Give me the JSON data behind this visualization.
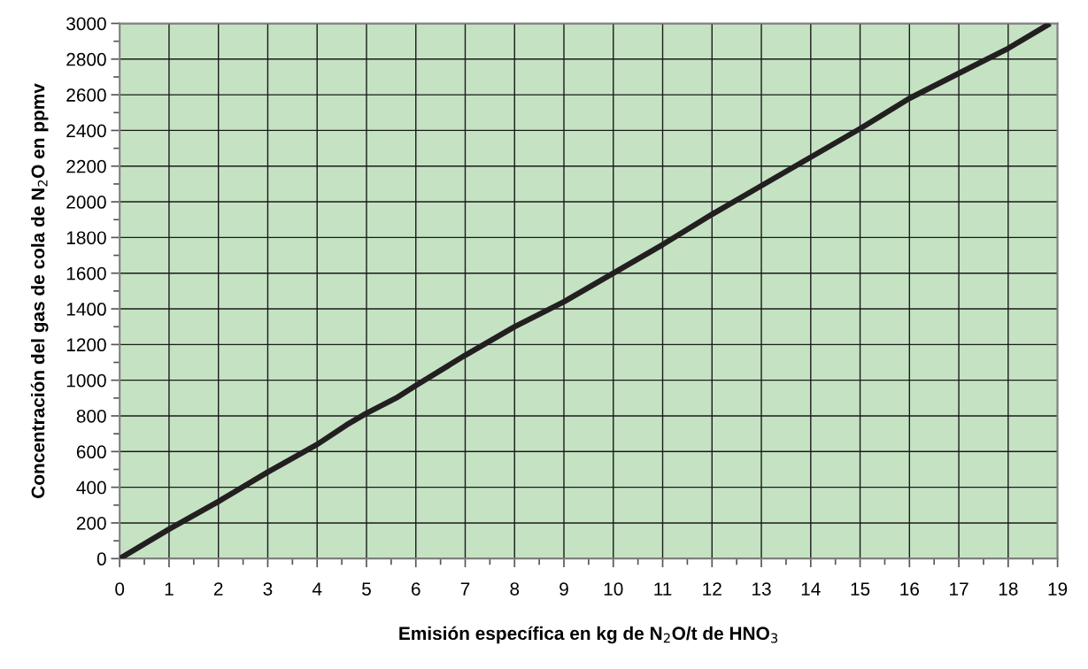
{
  "chart_data": {
    "type": "line",
    "xlabel": "Emisión específica en kg de N$_{2}$O/t de HNO$_{3}$",
    "ylabel": "Concentración del gas de cola de N$_{2}$O en ppmv",
    "x": [
      0,
      1,
      2,
      3,
      4,
      4.6,
      5,
      5.6,
      6,
      7,
      8,
      9,
      10,
      11,
      12,
      13,
      14,
      15,
      16,
      17,
      18,
      18.85
    ],
    "series": [
      {
        "color": "#231f20",
        "values": [
          0,
          165,
          320,
          485,
          640,
          750,
          815,
          900,
          970,
          1140,
          1300,
          1440,
          1600,
          1760,
          1930,
          2090,
          2250,
          2410,
          2580,
          2720,
          2860,
          3000
        ]
      }
    ],
    "xlim": [
      0,
      19
    ],
    "ylim": [
      0,
      3000
    ],
    "xticks": [
      0,
      1,
      2,
      3,
      4,
      5,
      6,
      7,
      8,
      9,
      10,
      11,
      12,
      13,
      14,
      15,
      16,
      17,
      18,
      19
    ],
    "yticks": [
      0,
      200,
      400,
      600,
      800,
      1000,
      1200,
      1400,
      1600,
      1800,
      2000,
      2200,
      2400,
      2600,
      2800,
      3000
    ],
    "grid": true,
    "legend": false,
    "marker": "none",
    "line_style": "solid"
  }
}
